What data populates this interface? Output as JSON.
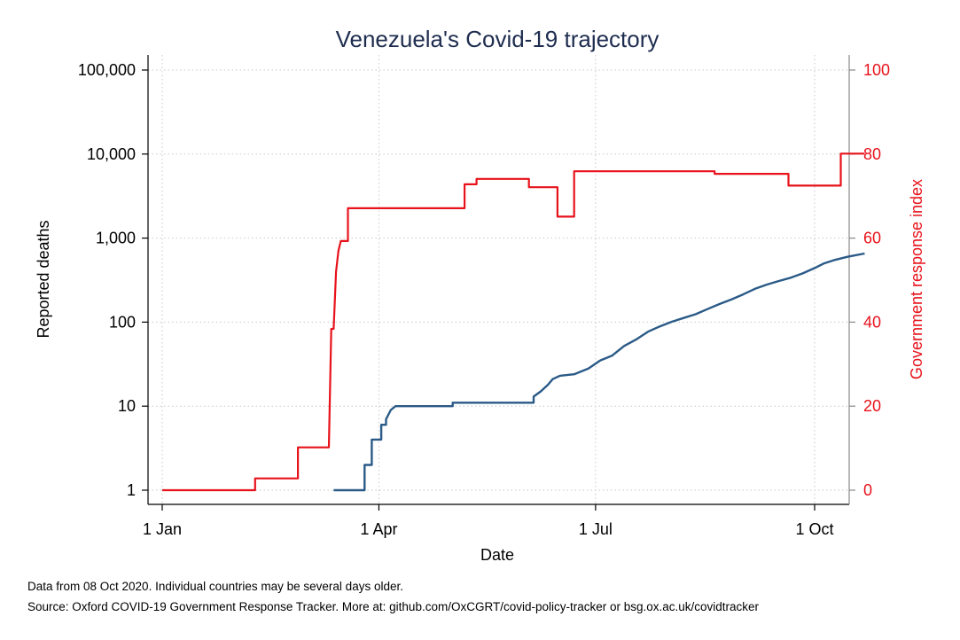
{
  "chart_data": {
    "type": "line",
    "title": "Venezuela's Covid-19 trajectory",
    "xlabel": "Date",
    "ylabel_left": "Reported deaths",
    "ylabel_right": "Government response index",
    "x_ticks": [
      "1 Jan",
      "1 Apr",
      "1 Jul",
      "1 Oct"
    ],
    "x_tick_days": [
      0,
      91,
      182,
      274
    ],
    "y_left_scale": "log",
    "y_left_ticks": [
      "1",
      "10",
      "100",
      "1,000",
      "10,000",
      "100,000"
    ],
    "y_left_tick_values": [
      1,
      10,
      100,
      1000,
      10000,
      100000
    ],
    "y_left_range": [
      1,
      100000
    ],
    "y_right_ticks": [
      "0",
      "20",
      "40",
      "60",
      "80",
      "100"
    ],
    "y_right_tick_values": [
      0,
      20,
      40,
      60,
      80,
      100
    ],
    "y_right_range": [
      0,
      100
    ],
    "grid": true,
    "colors": {
      "deaths": "#2a5a87",
      "stringency": "#e8121b",
      "title": "#1e2d4f",
      "grid": "#c8c8c8"
    },
    "series": [
      {
        "axis": "left",
        "points": [
          [
            "2020-03-13",
            1
          ],
          [
            "2020-03-26",
            1
          ],
          [
            "2020-03-26",
            2
          ],
          [
            "2020-03-29",
            2
          ],
          [
            "2020-03-29",
            4
          ],
          [
            "2020-04-02",
            4
          ],
          [
            "2020-04-02",
            6
          ],
          [
            "2020-04-04",
            6
          ],
          [
            "2020-04-04",
            7
          ],
          [
            "2020-04-06",
            9
          ],
          [
            "2020-04-08",
            10
          ],
          [
            "2020-05-02",
            10
          ],
          [
            "2020-05-02",
            11
          ],
          [
            "2020-06-05",
            11
          ],
          [
            "2020-06-05",
            13
          ],
          [
            "2020-06-08",
            15
          ],
          [
            "2020-06-11",
            18
          ],
          [
            "2020-06-13",
            21
          ],
          [
            "2020-06-16",
            23
          ],
          [
            "2020-06-22",
            24
          ],
          [
            "2020-06-28",
            28
          ],
          [
            "2020-07-03",
            35
          ],
          [
            "2020-07-08",
            40
          ],
          [
            "2020-07-13",
            52
          ],
          [
            "2020-07-18",
            62
          ],
          [
            "2020-07-23",
            77
          ],
          [
            "2020-07-28",
            89
          ],
          [
            "2020-08-02",
            101
          ],
          [
            "2020-08-07",
            112
          ],
          [
            "2020-08-12",
            124
          ],
          [
            "2020-08-17",
            143
          ],
          [
            "2020-08-22",
            164
          ],
          [
            "2020-08-27",
            186
          ],
          [
            "2020-09-01",
            214
          ],
          [
            "2020-09-06",
            249
          ],
          [
            "2020-09-11",
            280
          ],
          [
            "2020-09-16",
            309
          ],
          [
            "2020-09-21",
            338
          ],
          [
            "2020-09-26",
            380
          ],
          [
            "2020-10-01",
            440
          ],
          [
            "2020-10-05",
            500
          ],
          [
            "2020-10-09",
            545
          ],
          [
            "2020-10-15",
            600
          ],
          [
            "2020-10-22",
            655
          ]
        ]
      },
      {
        "axis": "right",
        "points": [
          [
            "2020-01-01",
            0
          ],
          [
            "2020-02-09",
            0
          ],
          [
            "2020-02-09",
            2.8
          ],
          [
            "2020-02-27",
            2.8
          ],
          [
            "2020-02-27",
            10.2
          ],
          [
            "2020-03-11",
            10.2
          ],
          [
            "2020-03-12",
            38.4
          ],
          [
            "2020-03-13",
            38.4
          ],
          [
            "2020-03-14",
            52
          ],
          [
            "2020-03-15",
            57
          ],
          [
            "2020-03-16",
            59.3
          ],
          [
            "2020-03-19",
            59.3
          ],
          [
            "2020-03-19",
            67.1
          ],
          [
            "2020-05-07",
            67.1
          ],
          [
            "2020-05-07",
            72.8
          ],
          [
            "2020-05-12",
            72.8
          ],
          [
            "2020-05-12",
            74.1
          ],
          [
            "2020-06-03",
            74.1
          ],
          [
            "2020-06-03",
            72.1
          ],
          [
            "2020-06-15",
            72.1
          ],
          [
            "2020-06-15",
            65.1
          ],
          [
            "2020-06-22",
            65.1
          ],
          [
            "2020-06-22",
            75.9
          ],
          [
            "2020-08-20",
            75.9
          ],
          [
            "2020-08-20",
            75.3
          ],
          [
            "2020-09-20",
            75.3
          ],
          [
            "2020-09-20",
            72.5
          ],
          [
            "2020-10-12",
            72.5
          ],
          [
            "2020-10-12",
            80.1
          ],
          [
            "2020-10-22",
            80.1
          ]
        ]
      }
    ]
  },
  "notes": {
    "line1": "Data from 08 Oct 2020. Individual countries may be several days older.",
    "line2": "Source: Oxford COVID-19 Government Response Tracker. More at: github.com/OxCGRT/covid-policy-tracker or bsg.ox.ac.uk/covidtracker"
  }
}
